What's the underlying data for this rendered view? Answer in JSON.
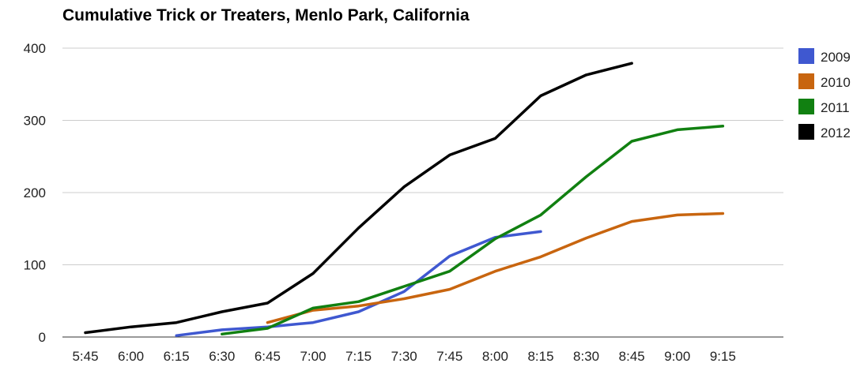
{
  "chart_data": {
    "type": "line",
    "title": "Cumulative Trick or Treaters, Menlo Park, California",
    "xlabel": "",
    "ylabel": "",
    "categories": [
      "5:45",
      "6:00",
      "6:15",
      "6:30",
      "6:45",
      "7:00",
      "7:15",
      "7:30",
      "7:45",
      "8:00",
      "8:15",
      "8:30",
      "8:45",
      "9:00",
      "9:15"
    ],
    "ylim": [
      0,
      400
    ],
    "yticks": [
      0,
      100,
      200,
      300,
      400
    ],
    "grid": true,
    "legend_position": "right",
    "series": [
      {
        "name": "2009",
        "color": "#3f58d0",
        "values": [
          null,
          null,
          2,
          10,
          14,
          20,
          35,
          63,
          112,
          138,
          146,
          null,
          null,
          null,
          null
        ]
      },
      {
        "name": "2010",
        "color": "#c8650f",
        "values": [
          null,
          null,
          null,
          null,
          20,
          37,
          43,
          53,
          66,
          91,
          111,
          137,
          160,
          169,
          171
        ]
      },
      {
        "name": "2011",
        "color": "#118011",
        "values": [
          null,
          null,
          null,
          4,
          12,
          40,
          49,
          70,
          91,
          136,
          169,
          222,
          271,
          287,
          292
        ]
      },
      {
        "name": "2012",
        "color": "#000000",
        "values": [
          6,
          14,
          20,
          35,
          47,
          88,
          151,
          208,
          252,
          275,
          334,
          363,
          379,
          null,
          null
        ]
      }
    ]
  }
}
